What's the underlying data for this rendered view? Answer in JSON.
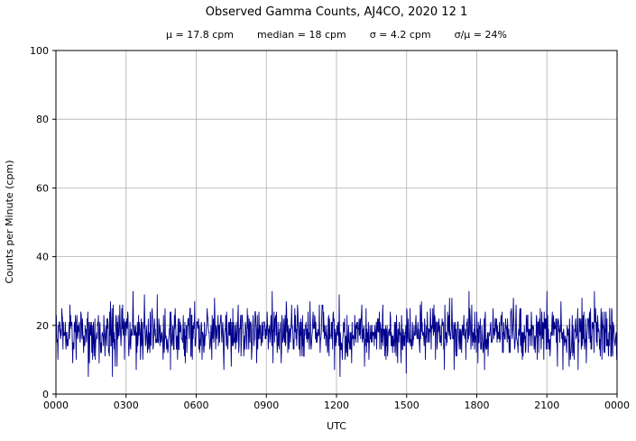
{
  "title": "Observed Gamma Counts, AJ4CO, 2020 12 1",
  "subtitle": {
    "mu": "μ = 17.8 cpm",
    "median": "median = 18 cpm",
    "sigma": "σ = 4.2 cpm",
    "ratio": "σ/μ = 24%"
  },
  "chart_data": {
    "type": "line",
    "title": "Observed Gamma Counts, AJ4CO, 2020 12 1",
    "xlabel": "UTC",
    "ylabel": "Counts per Minute (cpm)",
    "x_tick_labels": [
      "0000",
      "0300",
      "0600",
      "0900",
      "1200",
      "1500",
      "1800",
      "2100",
      "0000"
    ],
    "y_ticks": [
      0,
      20,
      40,
      60,
      80,
      100
    ],
    "ylim": [
      0,
      100
    ],
    "x_minutes": 1440,
    "stats": {
      "mean_cpm": 17.8,
      "median_cpm": 18,
      "sigma_cpm": 4.2,
      "sigma_over_mu_pct": 24
    },
    "observed_range_cpm": [
      5,
      33
    ],
    "grid": true,
    "legend": "none",
    "line_color": "#00008b",
    "grid_color": "#b0b0b0",
    "series_description": "1440 one-minute gamma count samples fluctuating randomly about the mean (flat noise, no bursts)"
  }
}
